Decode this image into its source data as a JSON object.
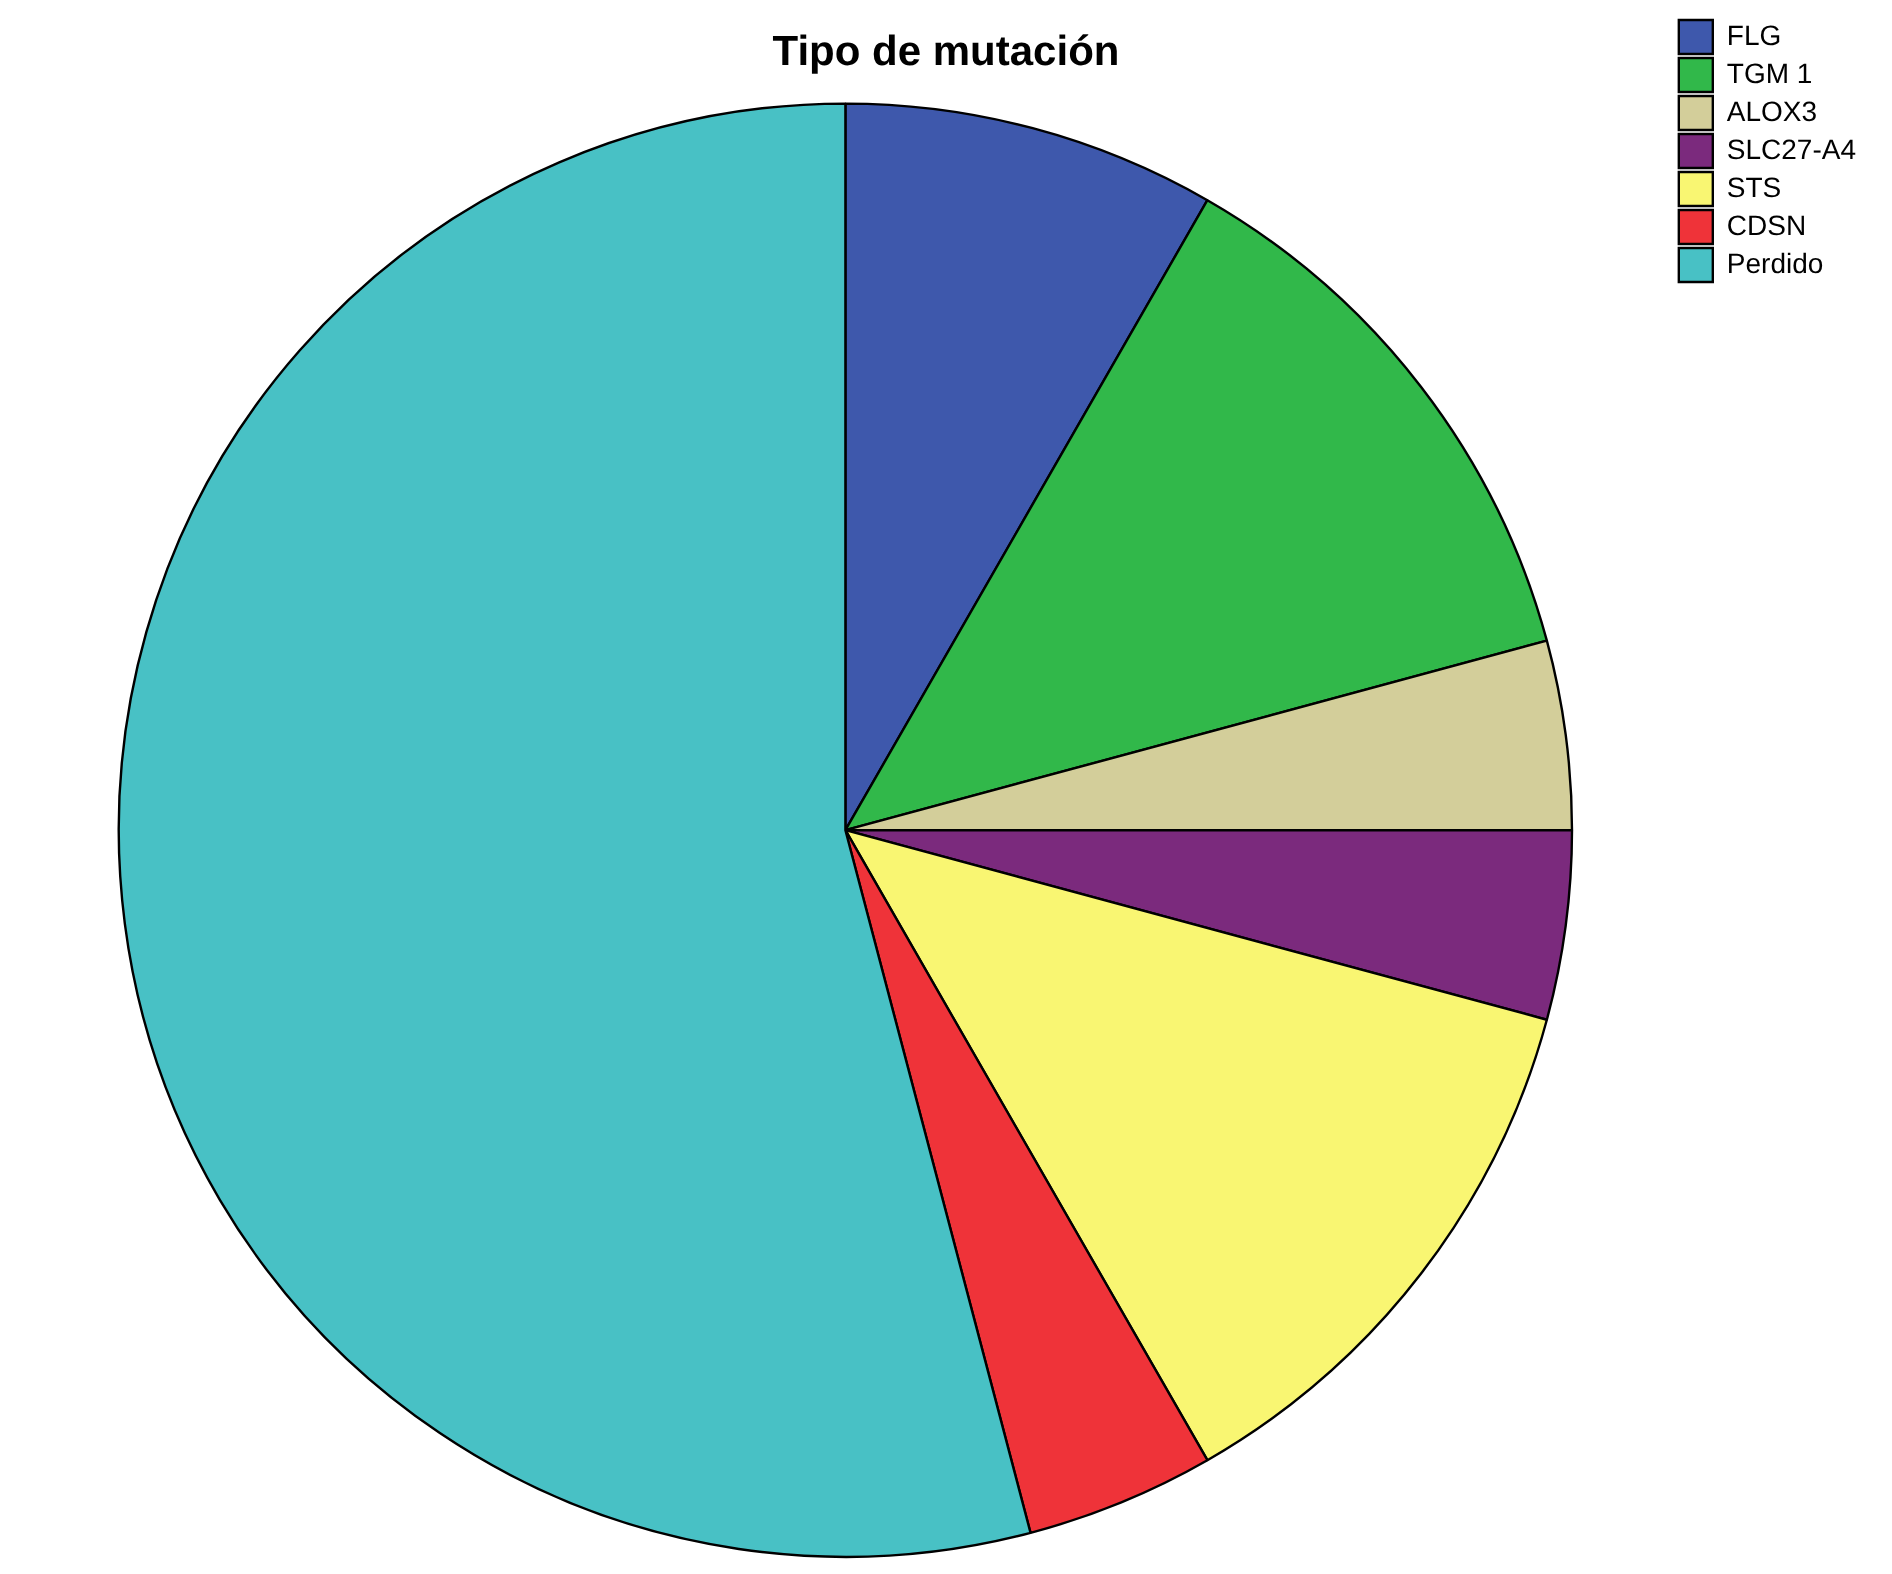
{
  "chart_data": {
    "type": "pie",
    "title": "Tipo de mutación",
    "categories": [
      "FLG",
      "TGM 1",
      "ALOX3",
      "SLC27-A4",
      "STS",
      "CDSN",
      "Perdido"
    ],
    "values": [
      8.3,
      12.5,
      4.2,
      4.2,
      12.5,
      4.2,
      54.1
    ],
    "colors": [
      "#3e58ac",
      "#31b84a",
      "#d3ce9a",
      "#7b2a7d",
      "#f9f672",
      "#ef3339",
      "#48c1c5"
    ],
    "legend": "top right"
  }
}
